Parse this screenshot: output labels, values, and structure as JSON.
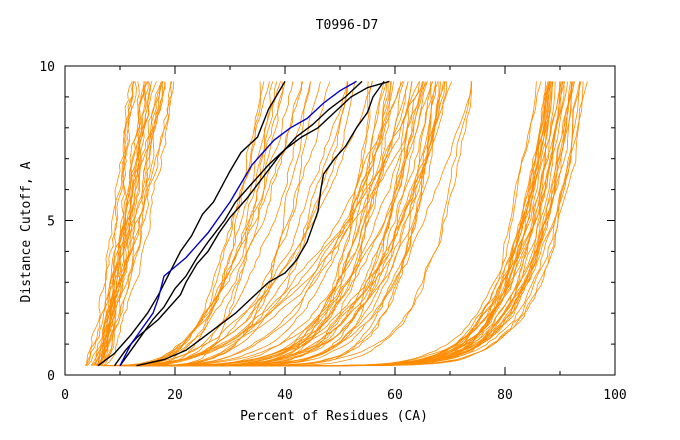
{
  "chart_data": {
    "type": "line",
    "title": "T0996-D7",
    "xlabel": "Percent of Residues (CA)",
    "ylabel": "Distance Cutoff, A",
    "xlim": [
      0,
      100
    ],
    "ylim": [
      0,
      10
    ],
    "x_ticks": [
      0,
      20,
      40,
      60,
      80,
      100
    ],
    "y_ticks": [
      0,
      5,
      10
    ],
    "grid": false,
    "colors": {
      "background_models": "#ff8c00",
      "highlight_black": "#000000",
      "highlight_blue": "#0000cd"
    },
    "curve_cutoff_range": [
      0.3,
      9.5
    ],
    "background_series_count": 120,
    "background_families": [
      {
        "name": "steep-left",
        "count": 25,
        "start_range": [
          4,
          7
        ],
        "end_range": [
          12,
          20
        ],
        "rise_range": [
          0.02,
          0.12
        ]
      },
      {
        "name": "mid",
        "count": 35,
        "start_range": [
          6,
          16
        ],
        "end_range": [
          35,
          70
        ],
        "rise_range": [
          0.15,
          0.45
        ]
      },
      {
        "name": "bulge-right",
        "count": 25,
        "start_range": [
          10,
          16
        ],
        "end_range": [
          55,
          75
        ],
        "rise_range": [
          0.45,
          0.75
        ]
      },
      {
        "name": "right-edge",
        "count": 35,
        "start_range": [
          12,
          18
        ],
        "end_range": [
          86,
          95
        ],
        "rise_range": [
          0.78,
          0.9
        ]
      }
    ],
    "highlighted_series": [
      {
        "name": "model-black-1",
        "color": "#000000",
        "points": [
          [
            6,
            0.3
          ],
          [
            9,
            0.7
          ],
          [
            12,
            1.3
          ],
          [
            15,
            2
          ],
          [
            17,
            2.6
          ],
          [
            19,
            3.3
          ],
          [
            21,
            4
          ],
          [
            23,
            4.5
          ],
          [
            25,
            5.2
          ],
          [
            27,
            5.6
          ],
          [
            30,
            6.6
          ],
          [
            32,
            7.2
          ],
          [
            35,
            7.7
          ],
          [
            37,
            8.6
          ],
          [
            40,
            9.5
          ]
        ]
      },
      {
        "name": "model-black-2",
        "color": "#000000",
        "points": [
          [
            9,
            0.3
          ],
          [
            11,
            0.8
          ],
          [
            13,
            1.2
          ],
          [
            15,
            1.5
          ],
          [
            17,
            1.8
          ],
          [
            19,
            2.2
          ],
          [
            21,
            2.6
          ],
          [
            22,
            3
          ],
          [
            24,
            3.6
          ],
          [
            26,
            4
          ],
          [
            28,
            4.6
          ],
          [
            30,
            5.1
          ],
          [
            33,
            5.7
          ],
          [
            36,
            6.4
          ],
          [
            39,
            7.1
          ],
          [
            42,
            7.7
          ],
          [
            45,
            8.1
          ],
          [
            48,
            8.6
          ],
          [
            51,
            9
          ],
          [
            54,
            9.5
          ]
        ]
      },
      {
        "name": "model-black-3",
        "color": "#000000",
        "points": [
          [
            13,
            0.3
          ],
          [
            18,
            0.5
          ],
          [
            22,
            0.8
          ],
          [
            25,
            1.2
          ],
          [
            28,
            1.6
          ],
          [
            31,
            2
          ],
          [
            34,
            2.5
          ],
          [
            37,
            3
          ],
          [
            40,
            3.3
          ],
          [
            42,
            3.7
          ],
          [
            44,
            4.3
          ],
          [
            45,
            4.8
          ],
          [
            46,
            5.3
          ],
          [
            46.5,
            6
          ],
          [
            47,
            6.5
          ],
          [
            49,
            7
          ],
          [
            51,
            7.4
          ],
          [
            53,
            8
          ],
          [
            55,
            8.5
          ],
          [
            56,
            9
          ],
          [
            58,
            9.5
          ]
        ]
      },
      {
        "name": "model-black-4",
        "color": "#000000",
        "points": [
          [
            10,
            0.3
          ],
          [
            12,
            0.8
          ],
          [
            14,
            1.3
          ],
          [
            16,
            1.8
          ],
          [
            18,
            2.2
          ],
          [
            20,
            2.8
          ],
          [
            22,
            3.2
          ],
          [
            24,
            3.8
          ],
          [
            26,
            4.3
          ],
          [
            29,
            5
          ],
          [
            31,
            5.6
          ],
          [
            34,
            6.2
          ],
          [
            37,
            6.8
          ],
          [
            40,
            7.3
          ],
          [
            43,
            7.7
          ],
          [
            46,
            8
          ],
          [
            49,
            8.5
          ],
          [
            52,
            9
          ],
          [
            55,
            9.3
          ],
          [
            59,
            9.5
          ]
        ]
      },
      {
        "name": "model-blue",
        "color": "#0000cd",
        "points": [
          [
            10,
            0.3
          ],
          [
            12,
            1
          ],
          [
            14,
            1.5
          ],
          [
            16,
            2
          ],
          [
            17,
            2.5
          ],
          [
            18,
            3.2
          ],
          [
            20,
            3.5
          ],
          [
            22,
            3.8
          ],
          [
            24,
            4.2
          ],
          [
            26,
            4.6
          ],
          [
            28,
            5.1
          ],
          [
            30,
            5.6
          ],
          [
            32,
            6.2
          ],
          [
            34,
            6.8
          ],
          [
            36,
            7.2
          ],
          [
            38,
            7.6
          ],
          [
            41,
            8
          ],
          [
            44,
            8.3
          ],
          [
            47,
            8.8
          ],
          [
            50,
            9.2
          ],
          [
            53,
            9.5
          ]
        ]
      }
    ]
  }
}
